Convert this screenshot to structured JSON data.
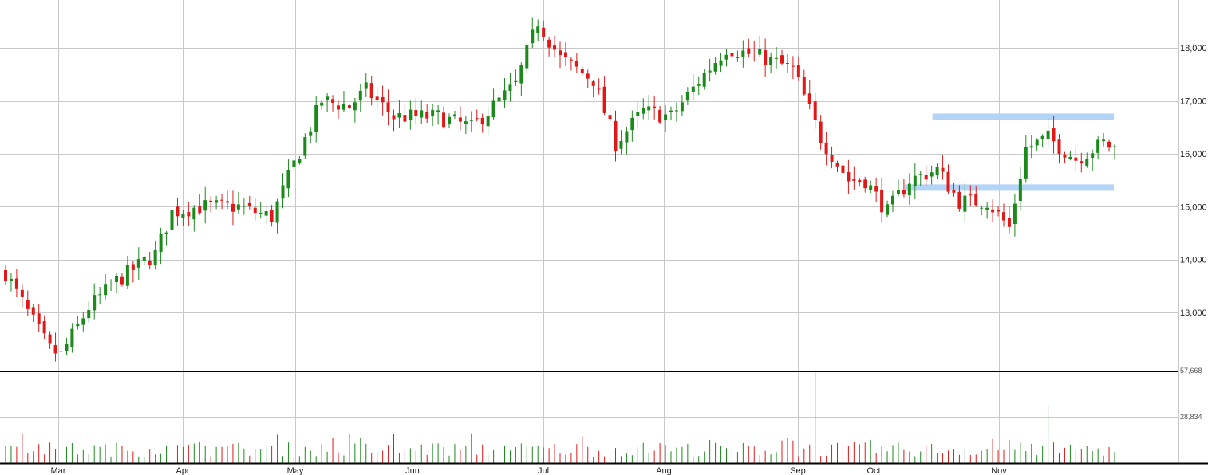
{
  "chart_data": {
    "type": "candlestick",
    "y_ticks": [
      "18,000",
      "17,000",
      "16,000",
      "15,000",
      "14,000",
      "13,000"
    ],
    "y_tick_values": [
      18000,
      17000,
      16000,
      15000,
      14000,
      13000
    ],
    "ylim": [
      11900,
      18900
    ],
    "volume_ticks": [
      "57,668",
      "28,834"
    ],
    "volume_tick_values": [
      57668,
      28834
    ],
    "volume_max": 57668,
    "x_months": [
      "Mar",
      "Apr",
      "May",
      "Jun",
      "Jul",
      "Aug",
      "Sep",
      "Oct",
      "Nov"
    ],
    "colors": {
      "up": "#1a8a1a",
      "down": "#e01818",
      "band": "#b3d4f7",
      "grid": "#c8c8c8",
      "axis": "#000000"
    },
    "resistance_band": {
      "value": 16700,
      "from_bar": 168,
      "to_bar": 199
    },
    "support_band": {
      "value": 15360,
      "from_bar": 163,
      "to_bar": 199
    },
    "price_keypoints": [
      [
        0,
        13750
      ],
      [
        4,
        13000
      ],
      [
        8,
        12300
      ],
      [
        10,
        12200
      ],
      [
        15,
        13100
      ],
      [
        20,
        13600
      ],
      [
        27,
        14100
      ],
      [
        30,
        14900
      ],
      [
        35,
        15000
      ],
      [
        42,
        15000
      ],
      [
        48,
        14800
      ],
      [
        52,
        15800
      ],
      [
        57,
        17000
      ],
      [
        62,
        16900
      ],
      [
        65,
        17200
      ],
      [
        70,
        16700
      ],
      [
        78,
        16700
      ],
      [
        84,
        16500
      ],
      [
        92,
        17300
      ],
      [
        96,
        18500
      ],
      [
        100,
        17800
      ],
      [
        106,
        17400
      ],
      [
        110,
        16200
      ],
      [
        115,
        16800
      ],
      [
        120,
        16700
      ],
      [
        126,
        17500
      ],
      [
        130,
        18000
      ],
      [
        137,
        17800
      ],
      [
        142,
        17600
      ],
      [
        147,
        16300
      ],
      [
        152,
        15500
      ],
      [
        155,
        15500
      ],
      [
        159,
        14900
      ],
      [
        163,
        15500
      ],
      [
        168,
        15700
      ],
      [
        172,
        15100
      ],
      [
        177,
        15100
      ],
      [
        181,
        14600
      ],
      [
        184,
        16100
      ],
      [
        188,
        16300
      ],
      [
        193,
        15900
      ],
      [
        198,
        16200
      ],
      [
        200,
        16100
      ]
    ],
    "volume_spikes": {
      "146": 58000,
      "185": 12000,
      "188": 36000
    }
  }
}
